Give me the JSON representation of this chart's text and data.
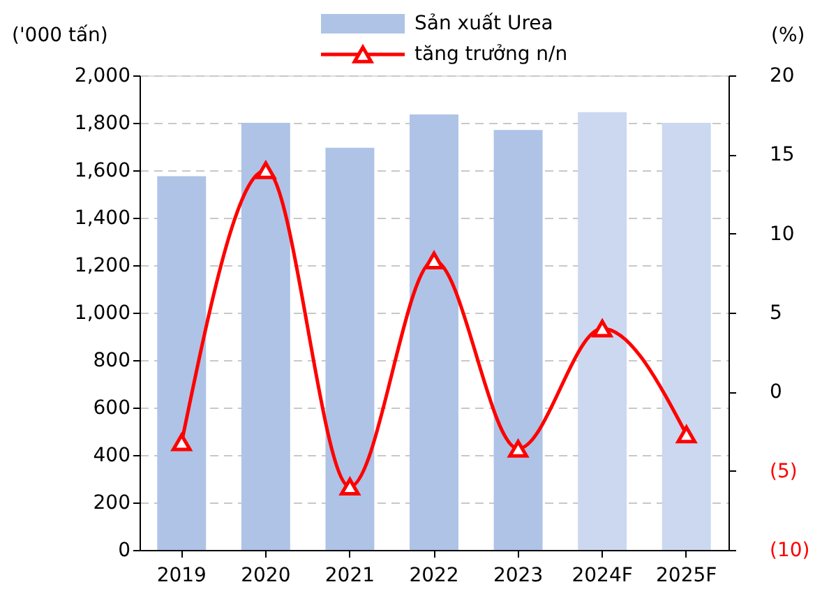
{
  "chart_data": {
    "type": "bar",
    "categories": [
      "2019",
      "2020",
      "2021",
      "2022",
      "2023",
      "2024F",
      "2025F"
    ],
    "ylabel": "('000 tấn)",
    "y2label": "(%)",
    "series": [
      {
        "name": "Sản xuất Urea",
        "values": [
          1575,
          1800,
          1695,
          1835,
          1770,
          1845,
          1800
        ],
        "colors": [
          "#aec3e6",
          "#aec3e6",
          "#aec3e6",
          "#aec3e6",
          "#aec3e6",
          "#cbd8f0",
          "#cbd8f0"
        ]
      },
      {
        "name": "tăng trưởng n/n",
        "type": "line",
        "axis": "y2",
        "color": "#ff0000",
        "marker": "triangle",
        "values": [
          -3.2,
          14.0,
          -6.0,
          8.3,
          -3.6,
          4.0,
          -2.7
        ]
      }
    ],
    "ylim": [
      0,
      2000
    ],
    "yticks": [
      0,
      200,
      400,
      600,
      800,
      {
        "value": 1000,
        "label": "1,000"
      },
      {
        "value": 1200,
        "label": "1,200"
      },
      {
        "value": 1400,
        "label": "1,400"
      },
      {
        "value": 1600,
        "label": "1,600"
      },
      {
        "value": 1800,
        "label": "1,800"
      },
      {
        "value": 2000,
        "label": "2,000"
      }
    ],
    "y2lim": [
      -10,
      20
    ],
    "y2ticks": [
      {
        "value": -10,
        "label": "(10)"
      },
      {
        "value": -5,
        "label": "(5)"
      },
      0,
      5,
      10,
      15,
      20
    ],
    "grid": "y",
    "legend": "top"
  }
}
